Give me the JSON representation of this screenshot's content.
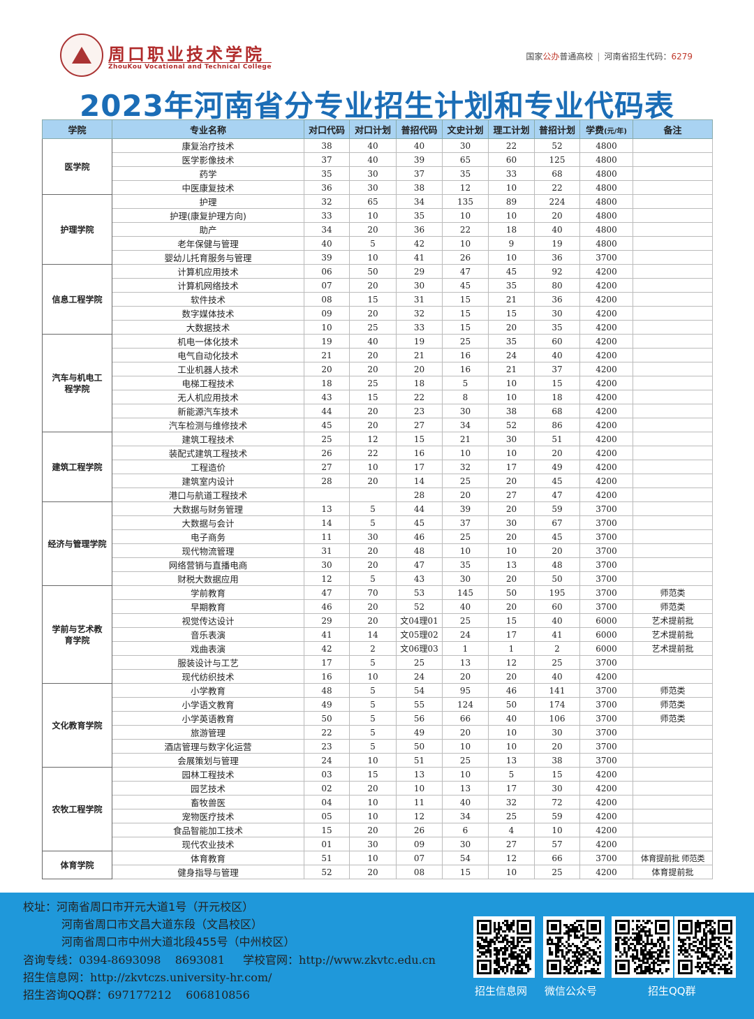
{
  "header": {
    "school_name_cn": "周口职业技术学院",
    "school_name_en": "ZhouKou Vocational and Technical College",
    "tagline_left_a": "国家",
    "tagline_left_hl": "公办",
    "tagline_left_b": "普通高校",
    "tagline_right": "河南省招生代码：",
    "tagline_code": "6279",
    "logo_icon": "school-seal-icon"
  },
  "title": "2023年河南省分专业招生计划和专业代码表",
  "table": {
    "headers": [
      "学院",
      "专业名称",
      "对口代码",
      "对口计划",
      "普招代码",
      "文史计划",
      "理工计划",
      "普招计划",
      "学费",
      "备注"
    ],
    "fee_unit": "(元/年)",
    "groups": [
      {
        "college": "医学院",
        "rows": [
          [
            "康复治疗技术",
            "38",
            "40",
            "40",
            "30",
            "22",
            "52",
            "4800",
            ""
          ],
          [
            "医学影像技术",
            "37",
            "40",
            "39",
            "65",
            "60",
            "125",
            "4800",
            ""
          ],
          [
            "药学",
            "35",
            "30",
            "37",
            "35",
            "33",
            "68",
            "4800",
            ""
          ],
          [
            "中医康复技术",
            "36",
            "30",
            "38",
            "12",
            "10",
            "22",
            "4800",
            ""
          ]
        ]
      },
      {
        "college": "护理学院",
        "rows": [
          [
            "护理",
            "32",
            "65",
            "34",
            "135",
            "89",
            "224",
            "4800",
            ""
          ],
          [
            "护理(康复护理方向)",
            "33",
            "10",
            "35",
            "10",
            "10",
            "20",
            "4800",
            ""
          ],
          [
            "助产",
            "34",
            "20",
            "36",
            "22",
            "18",
            "40",
            "4800",
            ""
          ],
          [
            "老年保健与管理",
            "40",
            "5",
            "42",
            "10",
            "9",
            "19",
            "4800",
            ""
          ],
          [
            "婴幼儿托育服务与管理",
            "39",
            "10",
            "41",
            "26",
            "10",
            "36",
            "3700",
            ""
          ]
        ]
      },
      {
        "college": "信息工程学院",
        "rows": [
          [
            "计算机应用技术",
            "06",
            "50",
            "29",
            "47",
            "45",
            "92",
            "4200",
            ""
          ],
          [
            "计算机网络技术",
            "07",
            "20",
            "30",
            "45",
            "35",
            "80",
            "4200",
            ""
          ],
          [
            "软件技术",
            "08",
            "15",
            "31",
            "15",
            "21",
            "36",
            "4200",
            ""
          ],
          [
            "数字媒体技术",
            "09",
            "20",
            "32",
            "15",
            "15",
            "30",
            "4200",
            ""
          ],
          [
            "大数据技术",
            "10",
            "25",
            "33",
            "15",
            "20",
            "35",
            "4200",
            ""
          ]
        ]
      },
      {
        "college": "汽车与机电工程学院",
        "rows": [
          [
            "机电一体化技术",
            "19",
            "40",
            "19",
            "25",
            "35",
            "60",
            "4200",
            ""
          ],
          [
            "电气自动化技术",
            "21",
            "20",
            "21",
            "16",
            "24",
            "40",
            "4200",
            ""
          ],
          [
            "工业机器人技术",
            "20",
            "20",
            "20",
            "16",
            "21",
            "37",
            "4200",
            ""
          ],
          [
            "电梯工程技术",
            "18",
            "25",
            "18",
            "5",
            "10",
            "15",
            "4200",
            ""
          ],
          [
            "无人机应用技术",
            "43",
            "15",
            "22",
            "8",
            "10",
            "18",
            "4200",
            ""
          ],
          [
            "新能源汽车技术",
            "44",
            "20",
            "23",
            "30",
            "38",
            "68",
            "4200",
            ""
          ],
          [
            "汽车检测与维修技术",
            "45",
            "20",
            "27",
            "34",
            "52",
            "86",
            "4200",
            ""
          ]
        ]
      },
      {
        "college": "建筑工程学院",
        "rows": [
          [
            "建筑工程技术",
            "25",
            "12",
            "15",
            "21",
            "30",
            "51",
            "4200",
            ""
          ],
          [
            "装配式建筑工程技术",
            "26",
            "22",
            "16",
            "10",
            "10",
            "20",
            "4200",
            ""
          ],
          [
            "工程造价",
            "27",
            "10",
            "17",
            "32",
            "17",
            "49",
            "4200",
            ""
          ],
          [
            "建筑室内设计",
            "28",
            "20",
            "14",
            "25",
            "20",
            "45",
            "4200",
            ""
          ],
          [
            "港口与航道工程技术",
            "",
            "",
            "28",
            "20",
            "27",
            "47",
            "4200",
            ""
          ]
        ]
      },
      {
        "college": "经济与管理学院",
        "rows": [
          [
            "大数据与财务管理",
            "13",
            "5",
            "44",
            "39",
            "20",
            "59",
            "3700",
            ""
          ],
          [
            "大数据与会计",
            "14",
            "5",
            "45",
            "37",
            "30",
            "67",
            "3700",
            ""
          ],
          [
            "电子商务",
            "11",
            "30",
            "46",
            "25",
            "20",
            "45",
            "3700",
            ""
          ],
          [
            "现代物流管理",
            "31",
            "20",
            "48",
            "10",
            "10",
            "20",
            "3700",
            ""
          ],
          [
            "网络营销与直播电商",
            "30",
            "20",
            "47",
            "35",
            "13",
            "48",
            "3700",
            ""
          ],
          [
            "财税大数据应用",
            "12",
            "5",
            "43",
            "30",
            "20",
            "50",
            "3700",
            ""
          ]
        ]
      },
      {
        "college": "学前与艺术教育学院",
        "rows": [
          [
            "学前教育",
            "47",
            "70",
            "53",
            "145",
            "50",
            "195",
            "3700",
            "师范类"
          ],
          [
            "早期教育",
            "46",
            "20",
            "52",
            "40",
            "20",
            "60",
            "3700",
            "师范类"
          ],
          [
            "视觉传达设计",
            "29",
            "20",
            "文04理01",
            "25",
            "15",
            "40",
            "6000",
            "艺术提前批"
          ],
          [
            "音乐表演",
            "41",
            "14",
            "文05理02",
            "24",
            "17",
            "41",
            "6000",
            "艺术提前批"
          ],
          [
            "戏曲表演",
            "42",
            "2",
            "文06理03",
            "1",
            "1",
            "2",
            "6000",
            "艺术提前批"
          ],
          [
            "服装设计与工艺",
            "17",
            "5",
            "25",
            "13",
            "12",
            "25",
            "3700",
            ""
          ],
          [
            "现代纺织技术",
            "16",
            "10",
            "24",
            "20",
            "20",
            "40",
            "4200",
            ""
          ]
        ]
      },
      {
        "college": "文化教育学院",
        "rows": [
          [
            "小学教育",
            "48",
            "5",
            "54",
            "95",
            "46",
            "141",
            "3700",
            "师范类"
          ],
          [
            "小学语文教育",
            "49",
            "5",
            "55",
            "124",
            "50",
            "174",
            "3700",
            "师范类"
          ],
          [
            "小学英语教育",
            "50",
            "5",
            "56",
            "66",
            "40",
            "106",
            "3700",
            "师范类"
          ],
          [
            "旅游管理",
            "22",
            "5",
            "49",
            "20",
            "10",
            "30",
            "3700",
            ""
          ],
          [
            "酒店管理与数字化运营",
            "23",
            "5",
            "50",
            "10",
            "10",
            "20",
            "3700",
            ""
          ],
          [
            "会展策划与管理",
            "24",
            "10",
            "51",
            "25",
            "13",
            "38",
            "3700",
            ""
          ]
        ]
      },
      {
        "college": "农牧工程学院",
        "rows": [
          [
            "园林工程技术",
            "03",
            "15",
            "13",
            "10",
            "5",
            "15",
            "4200",
            ""
          ],
          [
            "园艺技术",
            "02",
            "20",
            "10",
            "13",
            "17",
            "30",
            "4200",
            ""
          ],
          [
            "畜牧兽医",
            "04",
            "10",
            "11",
            "40",
            "32",
            "72",
            "4200",
            ""
          ],
          [
            "宠物医疗技术",
            "05",
            "10",
            "12",
            "34",
            "25",
            "59",
            "4200",
            ""
          ],
          [
            "食品智能加工技术",
            "15",
            "20",
            "26",
            "6",
            "4",
            "10",
            "4200",
            ""
          ],
          [
            "现代农业技术",
            "01",
            "30",
            "09",
            "30",
            "27",
            "57",
            "4200",
            ""
          ]
        ]
      },
      {
        "college": "体育学院",
        "rows": [
          [
            "体育教育",
            "51",
            "10",
            "07",
            "54",
            "12",
            "66",
            "3700",
            "体育提前批 师范类"
          ],
          [
            "健身指导与管理",
            "52",
            "20",
            "08",
            "15",
            "10",
            "25",
            "4200",
            "体育提前批"
          ]
        ]
      }
    ]
  },
  "footer": {
    "address_label": "校址：",
    "addresses": [
      "河南省周口市开元大道1号（开元校区）",
      "河南省周口市文昌大道东段（文昌校区）",
      "河南省周口市中州大道北段455号（中州校区）"
    ],
    "hotline_label": "咨询专线：",
    "hotline": "0394-8693098    8693081",
    "website_label": "学校官网：",
    "website": "http://www.zkvtc.edu.cn",
    "info_label": "招生信息网：",
    "info_url": "http://zkvtczs.university-hr.com/",
    "qq_label": "招生咨询QQ群：",
    "qq": "697177212    606810856",
    "qr_labels": [
      "招生信息网",
      "微信公众号",
      "招生QQ群"
    ],
    "background": "#1f98da"
  },
  "colors": {
    "title": "#1b6db6",
    "header_bg": "#a9d3f2",
    "brand_red": "#b02a2a"
  }
}
